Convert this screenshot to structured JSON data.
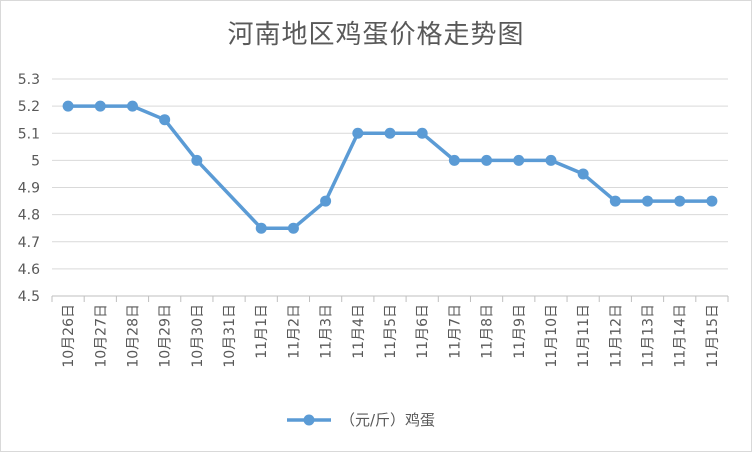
{
  "chart_data": {
    "type": "line",
    "title": "河南地区鸡蛋价格走势图",
    "categories": [
      "10月26日",
      "10月27日",
      "10月28日",
      "10月29日",
      "10月30日",
      "10月31日",
      "11月1日",
      "11月2日",
      "11月3日",
      "11月4日",
      "11月5日",
      "11月6日",
      "11月7日",
      "11月8日",
      "11月9日",
      "11月10日",
      "11月11日",
      "11月12日",
      "11月13日",
      "11月14日",
      "11月15日"
    ],
    "series": [
      {
        "name": "（元/斤）鸡蛋",
        "color": "#5b9bd5",
        "values": [
          5.2,
          5.2,
          5.2,
          5.15,
          5.0,
          null,
          4.75,
          4.75,
          4.85,
          5.1,
          5.1,
          5.1,
          5.0,
          5.0,
          5.0,
          5.0,
          4.95,
          4.85,
          4.85,
          4.85,
          4.85
        ]
      }
    ],
    "ylim": [
      4.5,
      5.3
    ],
    "yticks": [
      "4.5",
      "4.6",
      "4.7",
      "4.8",
      "4.9",
      "5",
      "5.1",
      "5.2",
      "5.3"
    ],
    "grid": true,
    "legend_position": "bottom"
  }
}
